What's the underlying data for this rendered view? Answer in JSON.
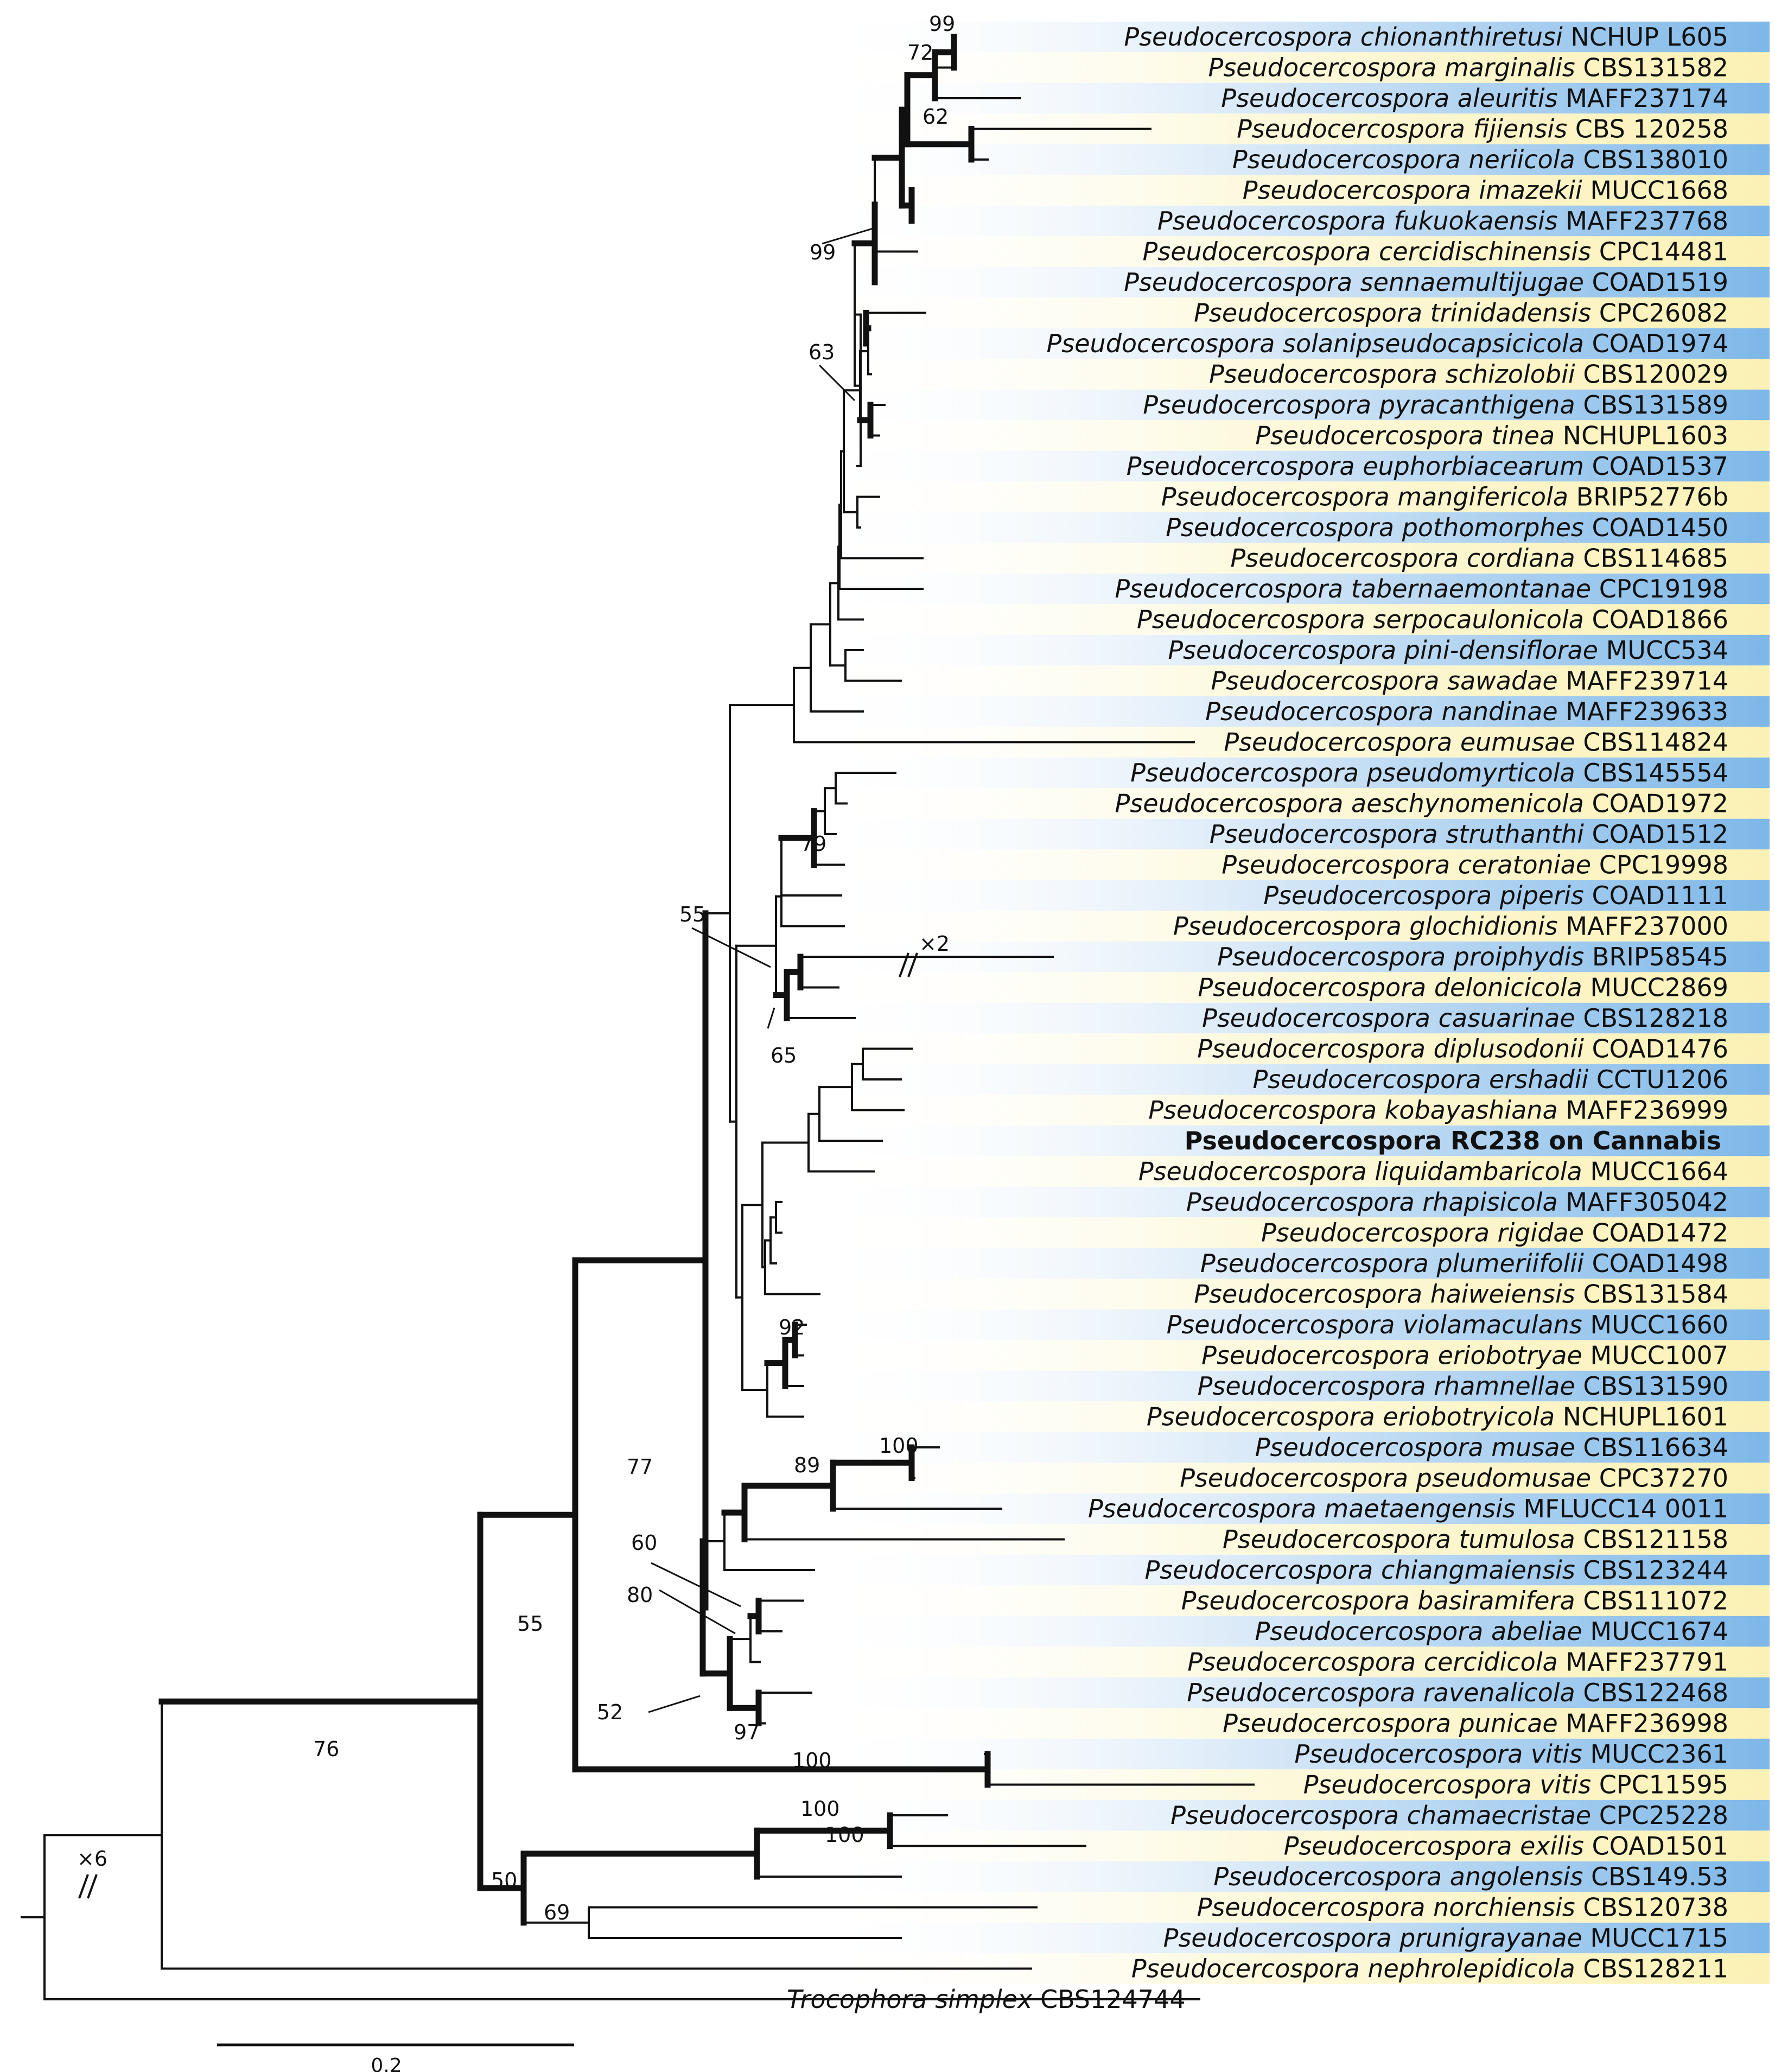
{
  "figure_type": "phylogenetic-tree",
  "colors": {
    "stripe_blue": "#7db7e8",
    "stripe_yellow": "#fbf3bf",
    "line": "#111111"
  },
  "taxa": [
    {
      "genus": "Pseudocercospora",
      "epithet": "chionanthiretusi",
      "strain": "NCHUP L605"
    },
    {
      "genus": "Pseudocercospora",
      "epithet": "marginalis",
      "strain": "CBS131582"
    },
    {
      "genus": "Pseudocercospora",
      "epithet": "aleuritis",
      "strain": "MAFF237174"
    },
    {
      "genus": "Pseudocercospora",
      "epithet": "fijiensis",
      "strain": "CBS 120258"
    },
    {
      "genus": "Pseudocercospora",
      "epithet": "neriicola",
      "strain": "CBS138010"
    },
    {
      "genus": "Pseudocercospora",
      "epithet": "imazekii",
      "strain": "MUCC1668"
    },
    {
      "genus": "Pseudocercospora",
      "epithet": "fukuokaensis",
      "strain": "MAFF237768"
    },
    {
      "genus": "Pseudocercospora",
      "epithet": "cercidischinensis",
      "strain": "CPC14481"
    },
    {
      "genus": "Pseudocercospora",
      "epithet": "sennaemultijugae",
      "strain": "COAD1519"
    },
    {
      "genus": "Pseudocercospora",
      "epithet": "trinidadensis",
      "strain": "CPC26082"
    },
    {
      "genus": "Pseudocercospora",
      "epithet": "solanipseudocapsicicola",
      "strain": "COAD1974"
    },
    {
      "genus": "Pseudocercospora",
      "epithet": "schizolobii",
      "strain": "CBS120029"
    },
    {
      "genus": "Pseudocercospora",
      "epithet": "pyracanthigena",
      "strain": "CBS131589"
    },
    {
      "genus": "Pseudocercospora",
      "epithet": "tinea",
      "strain": "NCHUPL1603"
    },
    {
      "genus": "Pseudocercospora",
      "epithet": "euphorbiacearum",
      "strain": "COAD1537"
    },
    {
      "genus": "Pseudocercospora",
      "epithet": "mangifericola",
      "strain": "BRIP52776b"
    },
    {
      "genus": "Pseudocercospora",
      "epithet": "pothomorphes",
      "strain": "COAD1450"
    },
    {
      "genus": "Pseudocercospora",
      "epithet": "cordiana",
      "strain": "CBS114685"
    },
    {
      "genus": "Pseudocercospora",
      "epithet": "tabernaemontanae",
      "strain": "CPC19198"
    },
    {
      "genus": "Pseudocercospora",
      "epithet": "serpocaulonicola",
      "strain": "COAD1866"
    },
    {
      "genus": "Pseudocercospora",
      "epithet": "pini-densiflorae",
      "strain": "MUCC534"
    },
    {
      "genus": "Pseudocercospora",
      "epithet": "sawadae",
      "strain": "MAFF239714"
    },
    {
      "genus": "Pseudocercospora",
      "epithet": "nandinae",
      "strain": "MAFF239633"
    },
    {
      "genus": "Pseudocercospora",
      "epithet": "eumusae",
      "strain": "CBS114824"
    },
    {
      "genus": "Pseudocercospora",
      "epithet": "pseudomyrticola",
      "strain": "CBS145554"
    },
    {
      "genus": "Pseudocercospora",
      "epithet": "aeschynomenicola",
      "strain": "COAD1972"
    },
    {
      "genus": "Pseudocercospora",
      "epithet": "struthanthi",
      "strain": "COAD1512"
    },
    {
      "genus": "Pseudocercospora",
      "epithet": "ceratoniae",
      "strain": "CPC19998"
    },
    {
      "genus": "Pseudocercospora",
      "epithet": "piperis",
      "strain": "COAD1111"
    },
    {
      "genus": "Pseudocercospora",
      "epithet": "glochidionis",
      "strain": "MAFF237000"
    },
    {
      "genus": "Pseudocercospora",
      "epithet": "proiphydis",
      "strain": "BRIP58545"
    },
    {
      "genus": "Pseudocercospora",
      "epithet": "delonicicola",
      "strain": "MUCC2869"
    },
    {
      "genus": "Pseudocercospora",
      "epithet": "casuarinae",
      "strain": "CBS128218"
    },
    {
      "genus": "Pseudocercospora",
      "epithet": "diplusodonii",
      "strain": "COAD1476"
    },
    {
      "genus": "Pseudocercospora",
      "epithet": "ershadii",
      "strain": "CCTU1206"
    },
    {
      "genus": "Pseudocercospora",
      "epithet": "kobayashiana",
      "strain": "MAFF236999"
    },
    {
      "bold_label": "Pseudocercospora RC238 on Cannabis"
    },
    {
      "genus": "Pseudocercospora",
      "epithet": "liquidambaricola",
      "strain": "MUCC1664"
    },
    {
      "genus": "Pseudocercospora",
      "epithet": "rhapisicola",
      "strain": "MAFF305042"
    },
    {
      "genus": "Pseudocercospora",
      "epithet": "rigidae",
      "strain": "COAD1472"
    },
    {
      "genus": "Pseudocercospora",
      "epithet": "plumeriifolii",
      "strain": "COAD1498"
    },
    {
      "genus": "Pseudocercospora",
      "epithet": "haiweiensis",
      "strain": "CBS131584"
    },
    {
      "genus": "Pseudocercospora",
      "epithet": "violamaculans",
      "strain": "MUCC1660"
    },
    {
      "genus": "Pseudocercospora",
      "epithet": "eriobotryae",
      "strain": "MUCC1007"
    },
    {
      "genus": "Pseudocercospora",
      "epithet": "rhamnellae",
      "strain": "CBS131590"
    },
    {
      "genus": "Pseudocercospora",
      "epithet": "eriobotryicola",
      "strain": "NCHUPL1601"
    },
    {
      "genus": "Pseudocercospora",
      "epithet": "musae",
      "strain": "CBS116634"
    },
    {
      "genus": "Pseudocercospora",
      "epithet": "pseudomusae",
      "strain": "CPC37270"
    },
    {
      "genus": "Pseudocercospora",
      "epithet": "maetaengensis",
      "strain": "MFLUCC14 0011"
    },
    {
      "genus": "Pseudocercospora",
      "epithet": "tumulosa",
      "strain": "CBS121158"
    },
    {
      "genus": "Pseudocercospora",
      "epithet": "chiangmaiensis",
      "strain": "CBS123244"
    },
    {
      "genus": "Pseudocercospora",
      "epithet": "basiramifera",
      "strain": "CBS111072"
    },
    {
      "genus": "Pseudocercospora",
      "epithet": "abeliae",
      "strain": "MUCC1674"
    },
    {
      "genus": "Pseudocercospora",
      "epithet": "cercidicola",
      "strain": "MAFF237791"
    },
    {
      "genus": "Pseudocercospora",
      "epithet": "ravenalicola",
      "strain": "CBS122468"
    },
    {
      "genus": "Pseudocercospora",
      "epithet": "punicae",
      "strain": "MAFF236998"
    },
    {
      "genus": "Pseudocercospora",
      "epithet": "vitis",
      "strain": "MUCC2361"
    },
    {
      "genus": "Pseudocercospora",
      "epithet": "vitis",
      "strain": "CPC11595"
    },
    {
      "genus": "Pseudocercospora",
      "epithet": "chamaecristae",
      "strain": "CPC25228"
    },
    {
      "genus": "Pseudocercospora",
      "epithet": "exilis",
      "strain": "COAD1501"
    },
    {
      "genus": "Pseudocercospora",
      "epithet": "angolensis",
      "strain": "CBS149.53"
    },
    {
      "genus": "Pseudocercospora",
      "epithet": "norchiensis",
      "strain": "CBS120738"
    },
    {
      "genus": "Pseudocercospora",
      "epithet": "prunigrayanae",
      "strain": "MUCC1715"
    },
    {
      "genus": "Pseudocercospora",
      "epithet": "nephrolepidicola",
      "strain": "CBS128211"
    },
    {
      "genus": "Trocophora",
      "epithet": "simplex",
      "strain": "CBS124744"
    }
  ],
  "support_values": [
    "99",
    "72",
    "62",
    "99",
    "63",
    "79",
    "55",
    "65",
    "92",
    "89",
    "100",
    "77",
    "60",
    "80",
    "52",
    "97",
    "55",
    "100",
    "76",
    "100",
    "100",
    "50",
    "69"
  ],
  "break_marks": [
    "×2",
    "×6"
  ],
  "scale_bar": {
    "value": 0.2,
    "label": "0.2"
  }
}
